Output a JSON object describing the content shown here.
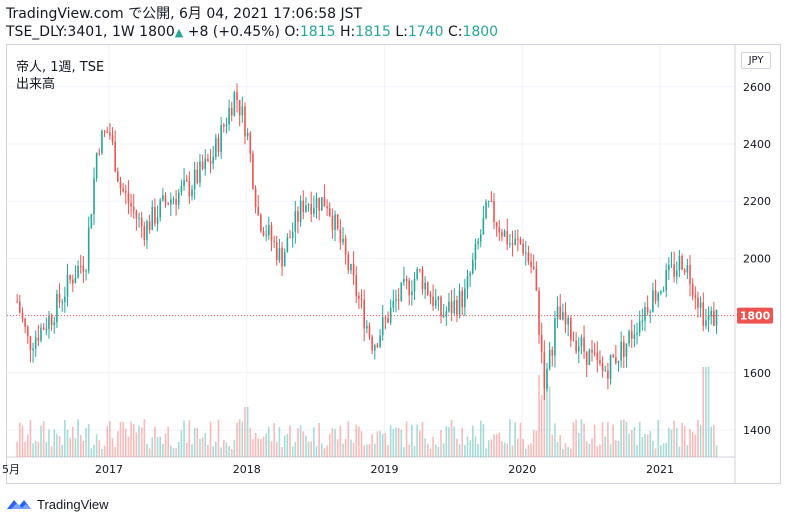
{
  "header": {
    "line1": "TradingView.com で公開, 6月 04, 2021 17:06:58 JST",
    "symbol": "TSE_DLY:3401, 1W",
    "last": "1800",
    "change": "+8 (+0.45%)",
    "o_label": "O:",
    "o": "1815",
    "h_label": "H:",
    "h": "1815",
    "l_label": "L:",
    "l": "1740",
    "c_label": "C:",
    "c": "1800"
  },
  "legend": {
    "line1": "帝人, 1週, TSE",
    "line2": "出来高"
  },
  "currency": "JPY",
  "footer": {
    "brand": "TradingView"
  },
  "colors": {
    "up": "#26a69a",
    "down": "#ef5350",
    "price_line": "#ef5350",
    "grid": "#f0f3fa"
  },
  "chart_data": {
    "type": "candlestick",
    "y_ticks": [
      1400,
      1600,
      1800,
      2000,
      2200,
      2400,
      2600
    ],
    "ylim": [
      1310,
      2700
    ],
    "x_ticks": [
      "5月",
      "2017",
      "2018",
      "2019",
      "2020",
      "2021"
    ],
    "last_price": 1800,
    "last_price_label": "1800",
    "volume_series": "出来高",
    "approx_close_path": [
      {
        "date": "2016-05",
        "close": 1850
      },
      {
        "date": "2016-06",
        "close": 1700
      },
      {
        "date": "2016-08",
        "close": 1800
      },
      {
        "date": "2016-10",
        "close": 1950
      },
      {
        "date": "2016-11",
        "close": 2000
      },
      {
        "date": "2016-12",
        "close": 2400
      },
      {
        "date": "2017-01",
        "close": 2450
      },
      {
        "date": "2017-02",
        "close": 2250
      },
      {
        "date": "2017-04",
        "close": 2100
      },
      {
        "date": "2017-06",
        "close": 2200
      },
      {
        "date": "2017-08",
        "close": 2250
      },
      {
        "date": "2017-10",
        "close": 2350
      },
      {
        "date": "2017-12",
        "close": 2580
      },
      {
        "date": "2018-01",
        "close": 2450
      },
      {
        "date": "2018-02",
        "close": 2150
      },
      {
        "date": "2018-04",
        "close": 2000
      },
      {
        "date": "2018-06",
        "close": 2200
      },
      {
        "date": "2018-08",
        "close": 2200
      },
      {
        "date": "2018-10",
        "close": 1950
      },
      {
        "date": "2018-12",
        "close": 1700
      },
      {
        "date": "2019-02",
        "close": 1850
      },
      {
        "date": "2019-04",
        "close": 1950
      },
      {
        "date": "2019-06",
        "close": 1800
      },
      {
        "date": "2019-08",
        "close": 1870
      },
      {
        "date": "2019-10",
        "close": 2180
      },
      {
        "date": "2019-12",
        "close": 2050
      },
      {
        "date": "2020-01",
        "close": 2050
      },
      {
        "date": "2020-02",
        "close": 1950
      },
      {
        "date": "2020-03",
        "close": 1550
      },
      {
        "date": "2020-04",
        "close": 1800
      },
      {
        "date": "2020-06",
        "close": 1700
      },
      {
        "date": "2020-08",
        "close": 1600
      },
      {
        "date": "2020-10",
        "close": 1700
      },
      {
        "date": "2020-12",
        "close": 1850
      },
      {
        "date": "2021-02",
        "close": 1950
      },
      {
        "date": "2021-03",
        "close": 2000
      },
      {
        "date": "2021-04",
        "close": 1900
      },
      {
        "date": "2021-05",
        "close": 1780
      },
      {
        "date": "2021-06",
        "close": 1800
      }
    ]
  }
}
